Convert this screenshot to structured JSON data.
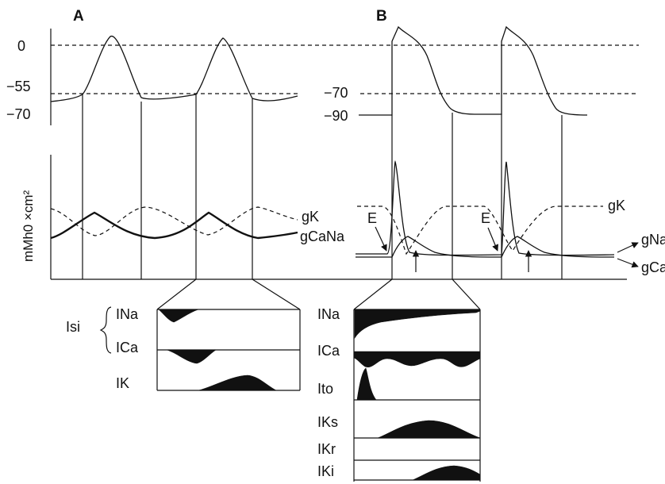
{
  "panels": {
    "a": "A",
    "b": "B"
  },
  "panel_a": {
    "voltage_labels": [
      "0",
      "−55",
      "−70"
    ],
    "conductance_axis_label": "mMh0 ×cm²",
    "gk_label": "gK",
    "gcana_label": "gCaNa",
    "isi_label": "Isi",
    "currents": [
      "INa",
      "ICa",
      "IK"
    ]
  },
  "panel_b": {
    "voltage_labels": [
      "−70",
      "−90"
    ],
    "gk_label": "gK",
    "gna_label": "gNa",
    "gca_label": "gCa",
    "e_label": "E",
    "currents": [
      "INa",
      "ICa",
      "Ito",
      "IKs",
      "IKr",
      "IKi"
    ]
  }
}
